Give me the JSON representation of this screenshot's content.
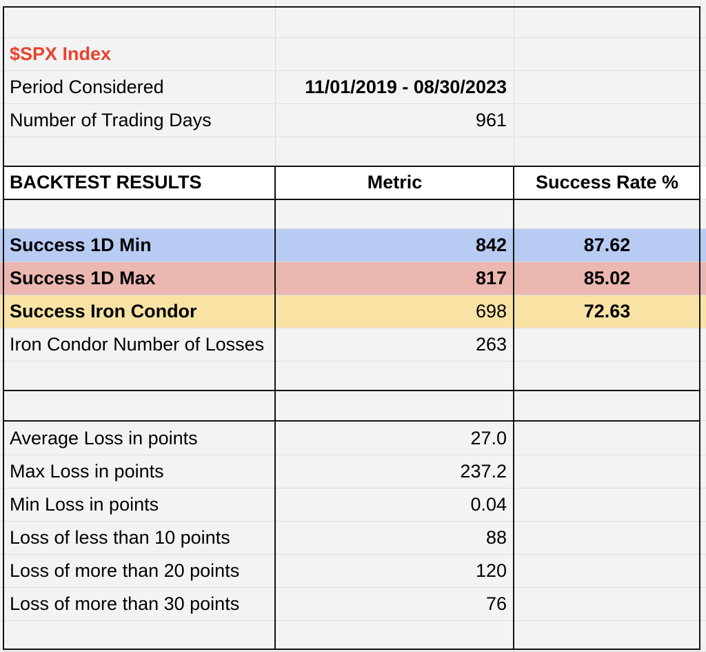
{
  "header": {
    "index_label": "$SPX Index",
    "period_label": "Period Considered",
    "period_value": "11/01/2019 - 08/30/2023",
    "days_label": "Number of Trading Days",
    "days_value": "961"
  },
  "table": {
    "title": "BACKTEST RESULTS",
    "col_metric": "Metric",
    "col_success": "Success Rate %",
    "rows": [
      {
        "label": "Success 1D Min",
        "metric": "842",
        "rate": "87.62",
        "color": "#b7cbf3"
      },
      {
        "label": "Success 1D Max",
        "metric": "817",
        "rate": "85.02",
        "color": "#ecb7b1"
      },
      {
        "label": "Success Iron Condor",
        "metric": "698",
        "rate": "72.63",
        "color": "#f8e3a5"
      },
      {
        "label": "Iron Condor Number of Losses",
        "metric": "263",
        "rate": ""
      }
    ]
  },
  "loss_stats": [
    {
      "label": "Average Loss in points",
      "value": "27.0"
    },
    {
      "label": "Max Loss in points",
      "value": "237.2"
    },
    {
      "label": "Min Loss in points",
      "value": "0.04"
    },
    {
      "label": "Loss of less than 10 points",
      "value": "88"
    },
    {
      "label": "Loss of more than 20 points",
      "value": "120"
    },
    {
      "label": "Loss of more than 30 points",
      "value": "76"
    }
  ],
  "colors": {
    "index_red": "#e8432e",
    "min_blue": "#b7cbf3",
    "max_red": "#ecb7b1",
    "condor_yellow": "#f8e3a5"
  }
}
